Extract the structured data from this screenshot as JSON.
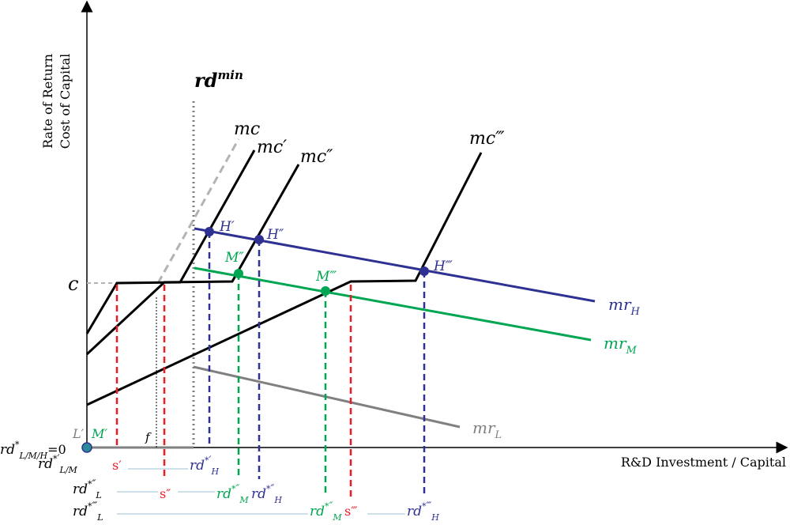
{
  "axes": {
    "y_label_line1": "Rate of Return",
    "y_label_line2": "Cost of Capital",
    "x_label": "R&D Investment / Capital"
  },
  "labels": {
    "rd_min": "rd",
    "rd_min_sup": "min",
    "c": "c",
    "mc": "mc",
    "mc1": "mc′",
    "mc2": "mc″",
    "mc3": "mc‴",
    "mr_H": "mr",
    "mr_H_sub": "H",
    "mr_M": "mr",
    "mr_M_sub": "M",
    "mr_L": "mr",
    "mr_L_sub": "L",
    "H1": "H′",
    "H2": "H″",
    "H3": "H‴",
    "M2": "M″",
    "M3": "M‴",
    "L1": "L′",
    "M1": "M′",
    "f": "f",
    "origin": "=0",
    "origin_rd": "rd",
    "origin_sup": "*",
    "origin_sub": "L/M/H"
  },
  "bottom_rows": {
    "row1": {
      "left": "rd",
      "left_sup": "*",
      "left_prime": "′",
      "left_sub": "L/M",
      "s": "s′",
      "rdH": "rd",
      "rdH_sup": "*",
      "rdH_prime": "′",
      "rdH_sub": "H"
    },
    "row2": {
      "left": "rd",
      "left_sup": "*",
      "left_prime": "″",
      "left_sub": "L",
      "s": "s″",
      "rdM": "rd",
      "rdM_sup": "*",
      "rdM_prime": "″",
      "rdM_sub": "M",
      "rdH": "rd",
      "rdH_sup": "*",
      "rdH_prime": "″",
      "rdH_sub": "H"
    },
    "row3": {
      "left": "rd",
      "left_sup": "*",
      "left_prime": "‴",
      "left_sub": "L",
      "rdM": "rd",
      "rdM_sup": "*",
      "rdM_prime": "″",
      "rdM_sub": "M",
      "s": "s‴",
      "rdH": "rd",
      "rdH_sup": "*",
      "rdH_prime": "‴",
      "rdH_sub": "H"
    }
  },
  "colors": {
    "black": "#000000",
    "blue": "#2e3192",
    "green": "#00a651",
    "gray": "#808080",
    "lightgray": "#b3b3b3",
    "red": "#ed1c24",
    "teal_line": "#9dc3d6"
  }
}
